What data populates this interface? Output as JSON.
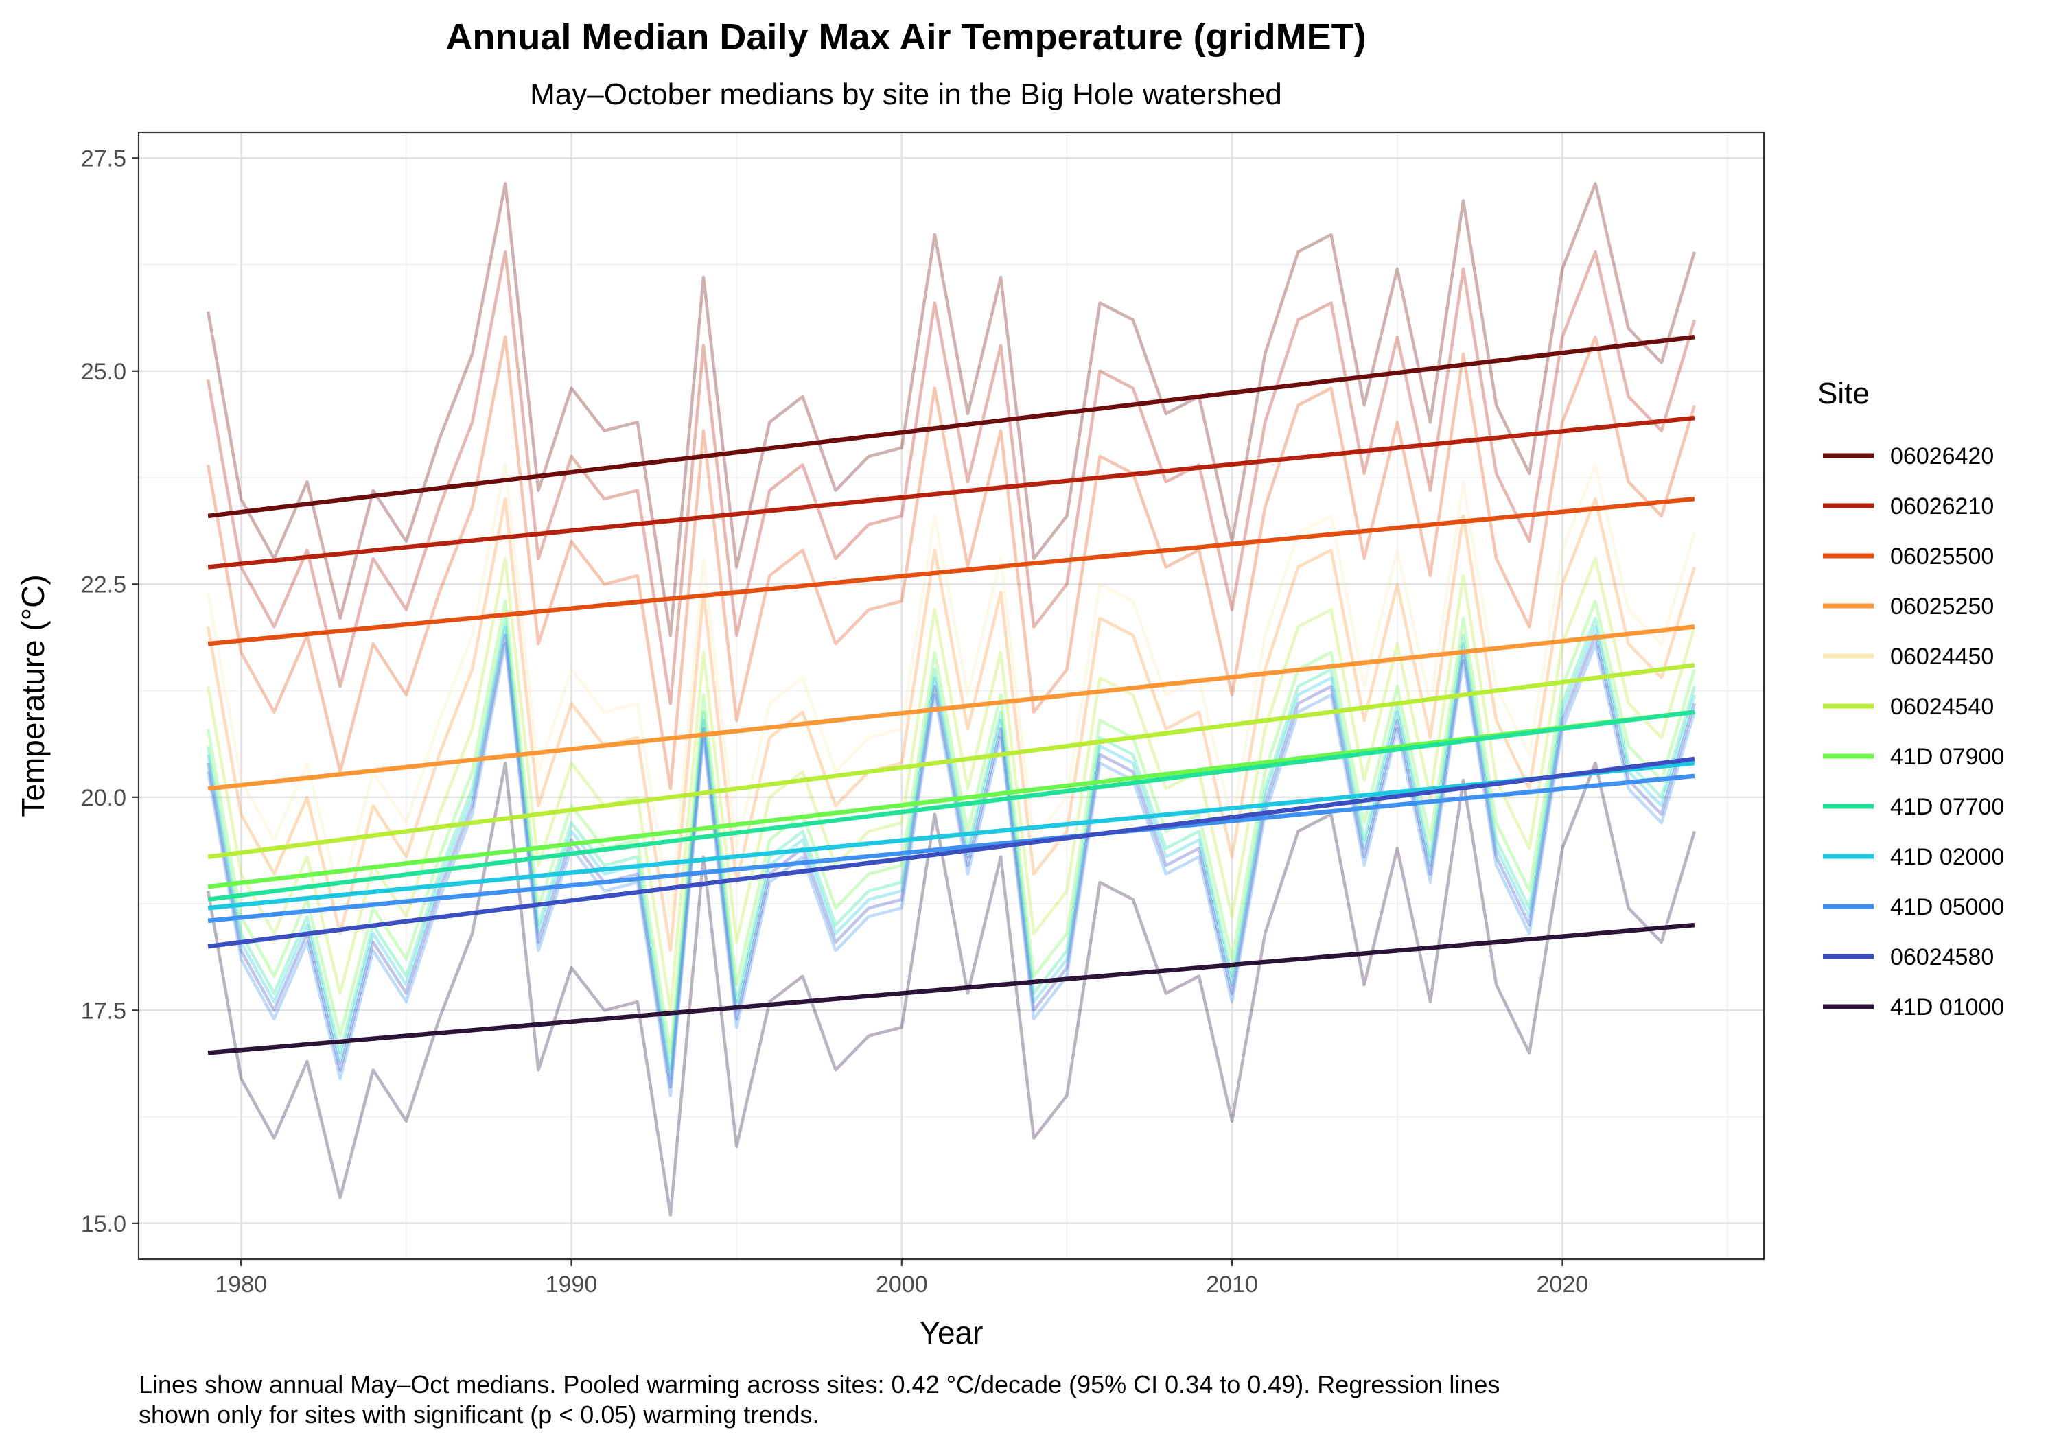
{
  "chart_data": {
    "type": "line",
    "title": "Annual Median Daily Max Air Temperature (gridMET)",
    "subtitle": "May–October medians by site in the Big Hole watershed",
    "xlabel": "Year",
    "ylabel": "Temperature (°C)",
    "xlim": [
      1976.9,
      2026.1
    ],
    "ylim": [
      14.58,
      27.8
    ],
    "x_ticks": [
      1980,
      1990,
      2000,
      2010,
      2020
    ],
    "y_ticks": [
      15.0,
      17.5,
      20.0,
      22.5,
      25.0,
      27.5
    ],
    "grid": true,
    "legend_title": "Site",
    "legend_position": "right",
    "caption_lines": [
      "Lines show annual May–Oct medians. Pooled warming across sites: 0.42 °C/decade (95% CI 0.34 to 0.49). Regression lines",
      "shown only for sites with significant (p < 0.05) warming trends."
    ],
    "x": [
      1979,
      1980,
      1981,
      1982,
      1983,
      1984,
      1985,
      1986,
      1987,
      1988,
      1989,
      1990,
      1991,
      1992,
      1993,
      1994,
      1995,
      1996,
      1997,
      1998,
      1999,
      2000,
      2001,
      2002,
      2003,
      2004,
      2005,
      2006,
      2007,
      2008,
      2009,
      2010,
      2011,
      2012,
      2013,
      2014,
      2015,
      2016,
      2017,
      2018,
      2019,
      2020,
      2021,
      2022,
      2023,
      2024
    ],
    "base_series": [
      20.5,
      18.3,
      17.6,
      18.5,
      16.9,
      18.4,
      17.8,
      19.0,
      20.0,
      22.0,
      18.4,
      19.6,
      19.1,
      19.2,
      16.7,
      20.9,
      17.5,
      19.2,
      19.5,
      18.4,
      18.8,
      18.9,
      21.4,
      19.3,
      20.9,
      17.6,
      18.1,
      20.6,
      20.4,
      19.3,
      19.5,
      17.8,
      20.0,
      21.2,
      21.4,
      19.4,
      21.0,
      19.2,
      21.8,
      19.4,
      18.6,
      21.0,
      22.0,
      20.3,
      19.9,
      21.2
    ],
    "series": [
      {
        "name": "06026420",
        "color": "#6b0d0d",
        "offset": 5.2,
        "trend": [
          23.3,
          25.4
        ]
      },
      {
        "name": "06026210",
        "color": "#b5220d",
        "offset": 4.4,
        "trend": [
          22.7,
          24.45
        ]
      },
      {
        "name": "06025500",
        "color": "#e24f10",
        "offset": 3.4,
        "trend": [
          21.8,
          23.5
        ]
      },
      {
        "name": "06025250",
        "color": "#f99635",
        "offset": 1.5,
        "trend": [
          20.1,
          22.0
        ]
      },
      {
        "name": "06024450",
        "color": "#f9e8b7",
        "offset": 1.9,
        "trend": null
      },
      {
        "name": "06024540",
        "color": "#b8ec37",
        "offset": 0.8,
        "trend": [
          19.3,
          21.55
        ]
      },
      {
        "name": "41D 07900",
        "color": "#6cf54a",
        "offset": 0.3,
        "trend": [
          18.95,
          21.0
        ]
      },
      {
        "name": "41D 07700",
        "color": "#22e29a",
        "offset": 0.1,
        "trend": [
          18.8,
          21.0
        ]
      },
      {
        "name": "41D 02000",
        "color": "#1ec8e0",
        "offset": 0.0,
        "trend": [
          18.7,
          20.4
        ]
      },
      {
        "name": "41D 05000",
        "color": "#3e91f0",
        "offset": -0.2,
        "trend": [
          18.55,
          20.25
        ]
      },
      {
        "name": "06024580",
        "color": "#3b4fc0",
        "offset": -0.1,
        "trend": [
          18.25,
          20.45
        ]
      },
      {
        "name": "41D 01000",
        "color": "#2b1437",
        "offset": -1.6,
        "trend": [
          17.0,
          18.5
        ]
      }
    ]
  }
}
